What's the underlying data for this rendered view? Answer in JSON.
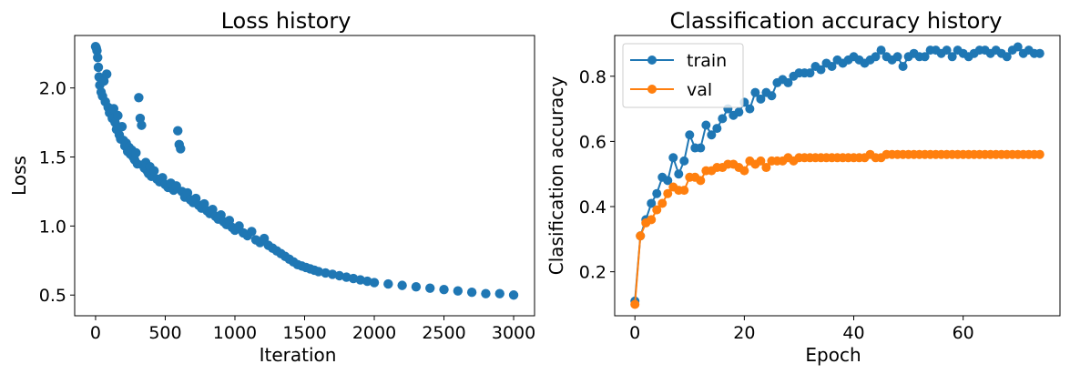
{
  "chart_data": [
    {
      "type": "scatter",
      "title": "Loss history",
      "xlabel": "Iteration",
      "ylabel": "Loss",
      "xlim": [
        -150,
        3150
      ],
      "ylim": [
        0.35,
        2.38
      ],
      "xticks": [
        0,
        500,
        1000,
        1500,
        2000,
        2500,
        3000
      ],
      "xtick_labels": [
        "0",
        "500",
        "1000",
        "1500",
        "2000",
        "2500",
        "3000"
      ],
      "yticks": [
        0.5,
        1.0,
        1.5,
        2.0
      ],
      "ytick_labels": [
        "0.5",
        "1.0",
        "1.5",
        "2.0"
      ],
      "grid": false,
      "color": "#1f77b4",
      "points": [
        [
          0,
          2.3
        ],
        [
          5,
          2.29
        ],
        [
          10,
          2.27
        ],
        [
          15,
          2.22
        ],
        [
          20,
          2.15
        ],
        [
          25,
          2.08
        ],
        [
          30,
          2.02
        ],
        [
          40,
          1.97
        ],
        [
          50,
          1.94
        ],
        [
          60,
          2.05
        ],
        [
          70,
          1.9
        ],
        [
          80,
          2.1
        ],
        [
          90,
          1.86
        ],
        [
          100,
          1.82
        ],
        [
          110,
          1.83
        ],
        [
          120,
          1.78
        ],
        [
          130,
          1.85
        ],
        [
          140,
          1.75
        ],
        [
          150,
          1.7
        ],
        [
          160,
          1.8
        ],
        [
          170,
          1.66
        ],
        [
          180,
          1.63
        ],
        [
          190,
          1.72
        ],
        [
          200,
          1.62
        ],
        [
          210,
          1.58
        ],
        [
          220,
          1.6
        ],
        [
          230,
          1.54
        ],
        [
          240,
          1.57
        ],
        [
          250,
          1.52
        ],
        [
          260,
          1.55
        ],
        [
          270,
          1.5
        ],
        [
          280,
          1.48
        ],
        [
          290,
          1.53
        ],
        [
          300,
          1.45
        ],
        [
          310,
          1.93
        ],
        [
          320,
          1.78
        ],
        [
          330,
          1.73
        ],
        [
          340,
          1.44
        ],
        [
          350,
          1.42
        ],
        [
          360,
          1.46
        ],
        [
          370,
          1.4
        ],
        [
          380,
          1.38
        ],
        [
          390,
          1.43
        ],
        [
          400,
          1.36
        ],
        [
          420,
          1.4
        ],
        [
          440,
          1.34
        ],
        [
          460,
          1.32
        ],
        [
          480,
          1.35
        ],
        [
          500,
          1.3
        ],
        [
          520,
          1.28
        ],
        [
          540,
          1.31
        ],
        [
          560,
          1.26
        ],
        [
          580,
          1.29
        ],
        [
          590,
          1.69
        ],
        [
          600,
          1.59
        ],
        [
          610,
          1.56
        ],
        [
          620,
          1.25
        ],
        [
          640,
          1.21
        ],
        [
          660,
          1.24
        ],
        [
          680,
          1.19
        ],
        [
          700,
          1.17
        ],
        [
          720,
          1.2
        ],
        [
          740,
          1.15
        ],
        [
          760,
          1.13
        ],
        [
          780,
          1.16
        ],
        [
          800,
          1.11
        ],
        [
          820,
          1.09
        ],
        [
          840,
          1.12
        ],
        [
          860,
          1.07
        ],
        [
          880,
          1.05
        ],
        [
          900,
          1.08
        ],
        [
          920,
          1.03
        ],
        [
          940,
          1.01
        ],
        [
          960,
          1.04
        ],
        [
          980,
          0.99
        ],
        [
          1000,
          0.97
        ],
        [
          1030,
          1.0
        ],
        [
          1060,
          0.95
        ],
        [
          1090,
          0.93
        ],
        [
          1120,
          0.96
        ],
        [
          1150,
          0.9
        ],
        [
          1180,
          0.88
        ],
        [
          1210,
          0.91
        ],
        [
          1240,
          0.86
        ],
        [
          1270,
          0.84
        ],
        [
          1300,
          0.82
        ],
        [
          1330,
          0.8
        ],
        [
          1360,
          0.78
        ],
        [
          1390,
          0.76
        ],
        [
          1420,
          0.74
        ],
        [
          1450,
          0.72
        ],
        [
          1480,
          0.71
        ],
        [
          1510,
          0.7
        ],
        [
          1540,
          0.69
        ],
        [
          1570,
          0.68
        ],
        [
          1600,
          0.67
        ],
        [
          1650,
          0.66
        ],
        [
          1700,
          0.65
        ],
        [
          1750,
          0.64
        ],
        [
          1800,
          0.63
        ],
        [
          1850,
          0.62
        ],
        [
          1900,
          0.61
        ],
        [
          1950,
          0.6
        ],
        [
          2000,
          0.59
        ],
        [
          2100,
          0.58
        ],
        [
          2200,
          0.57
        ],
        [
          2300,
          0.56
        ],
        [
          2400,
          0.55
        ],
        [
          2500,
          0.54
        ],
        [
          2600,
          0.53
        ],
        [
          2700,
          0.52
        ],
        [
          2800,
          0.51
        ],
        [
          2900,
          0.51
        ],
        [
          3000,
          0.5
        ]
      ]
    },
    {
      "type": "line",
      "title": "Classification accuracy history",
      "xlabel": "Epoch",
      "ylabel": "Clasification accuracy",
      "xlim": [
        -3.7,
        77.7
      ],
      "ylim": [
        0.065,
        0.925
      ],
      "xticks": [
        0,
        20,
        40,
        60
      ],
      "xtick_labels": [
        "0",
        "20",
        "40",
        "60"
      ],
      "yticks": [
        0.2,
        0.4,
        0.6,
        0.8
      ],
      "ytick_labels": [
        "0.2",
        "0.4",
        "0.6",
        "0.8"
      ],
      "grid": false,
      "legend": "upper-left",
      "x": [
        0,
        1,
        2,
        3,
        4,
        5,
        6,
        7,
        8,
        9,
        10,
        11,
        12,
        13,
        14,
        15,
        16,
        17,
        18,
        19,
        20,
        21,
        22,
        23,
        24,
        25,
        26,
        27,
        28,
        29,
        30,
        31,
        32,
        33,
        34,
        35,
        36,
        37,
        38,
        39,
        40,
        41,
        42,
        43,
        44,
        45,
        46,
        47,
        48,
        49,
        50,
        51,
        52,
        53,
        54,
        55,
        56,
        57,
        58,
        59,
        60,
        61,
        62,
        63,
        64,
        65,
        66,
        67,
        68,
        69,
        70,
        71,
        72,
        73,
        74
      ],
      "series": [
        {
          "name": "train",
          "color": "#1f77b4",
          "values": [
            0.11,
            0.31,
            0.36,
            0.41,
            0.44,
            0.49,
            0.48,
            0.55,
            0.5,
            0.54,
            0.62,
            0.58,
            0.58,
            0.65,
            0.62,
            0.64,
            0.67,
            0.7,
            0.68,
            0.69,
            0.72,
            0.7,
            0.75,
            0.73,
            0.75,
            0.74,
            0.78,
            0.79,
            0.78,
            0.8,
            0.81,
            0.81,
            0.81,
            0.83,
            0.82,
            0.84,
            0.83,
            0.85,
            0.84,
            0.85,
            0.86,
            0.85,
            0.84,
            0.85,
            0.86,
            0.88,
            0.86,
            0.85,
            0.86,
            0.83,
            0.86,
            0.87,
            0.86,
            0.86,
            0.88,
            0.88,
            0.87,
            0.88,
            0.86,
            0.88,
            0.87,
            0.86,
            0.87,
            0.88,
            0.88,
            0.87,
            0.88,
            0.87,
            0.86,
            0.88,
            0.89,
            0.87,
            0.88,
            0.87,
            0.87
          ]
        },
        {
          "name": "val",
          "color": "#ff7f0e",
          "values": [
            0.1,
            0.31,
            0.35,
            0.36,
            0.39,
            0.41,
            0.44,
            0.46,
            0.45,
            0.45,
            0.49,
            0.49,
            0.48,
            0.51,
            0.51,
            0.52,
            0.52,
            0.53,
            0.53,
            0.52,
            0.51,
            0.54,
            0.53,
            0.54,
            0.52,
            0.54,
            0.54,
            0.54,
            0.55,
            0.54,
            0.55,
            0.55,
            0.55,
            0.55,
            0.55,
            0.55,
            0.55,
            0.55,
            0.55,
            0.55,
            0.55,
            0.55,
            0.55,
            0.56,
            0.55,
            0.55,
            0.56,
            0.56,
            0.56,
            0.56,
            0.56,
            0.56,
            0.56,
            0.56,
            0.56,
            0.56,
            0.56,
            0.56,
            0.56,
            0.56,
            0.56,
            0.56,
            0.56,
            0.56,
            0.56,
            0.56,
            0.56,
            0.56,
            0.56,
            0.56,
            0.56,
            0.56,
            0.56,
            0.56,
            0.56
          ]
        }
      ]
    }
  ]
}
